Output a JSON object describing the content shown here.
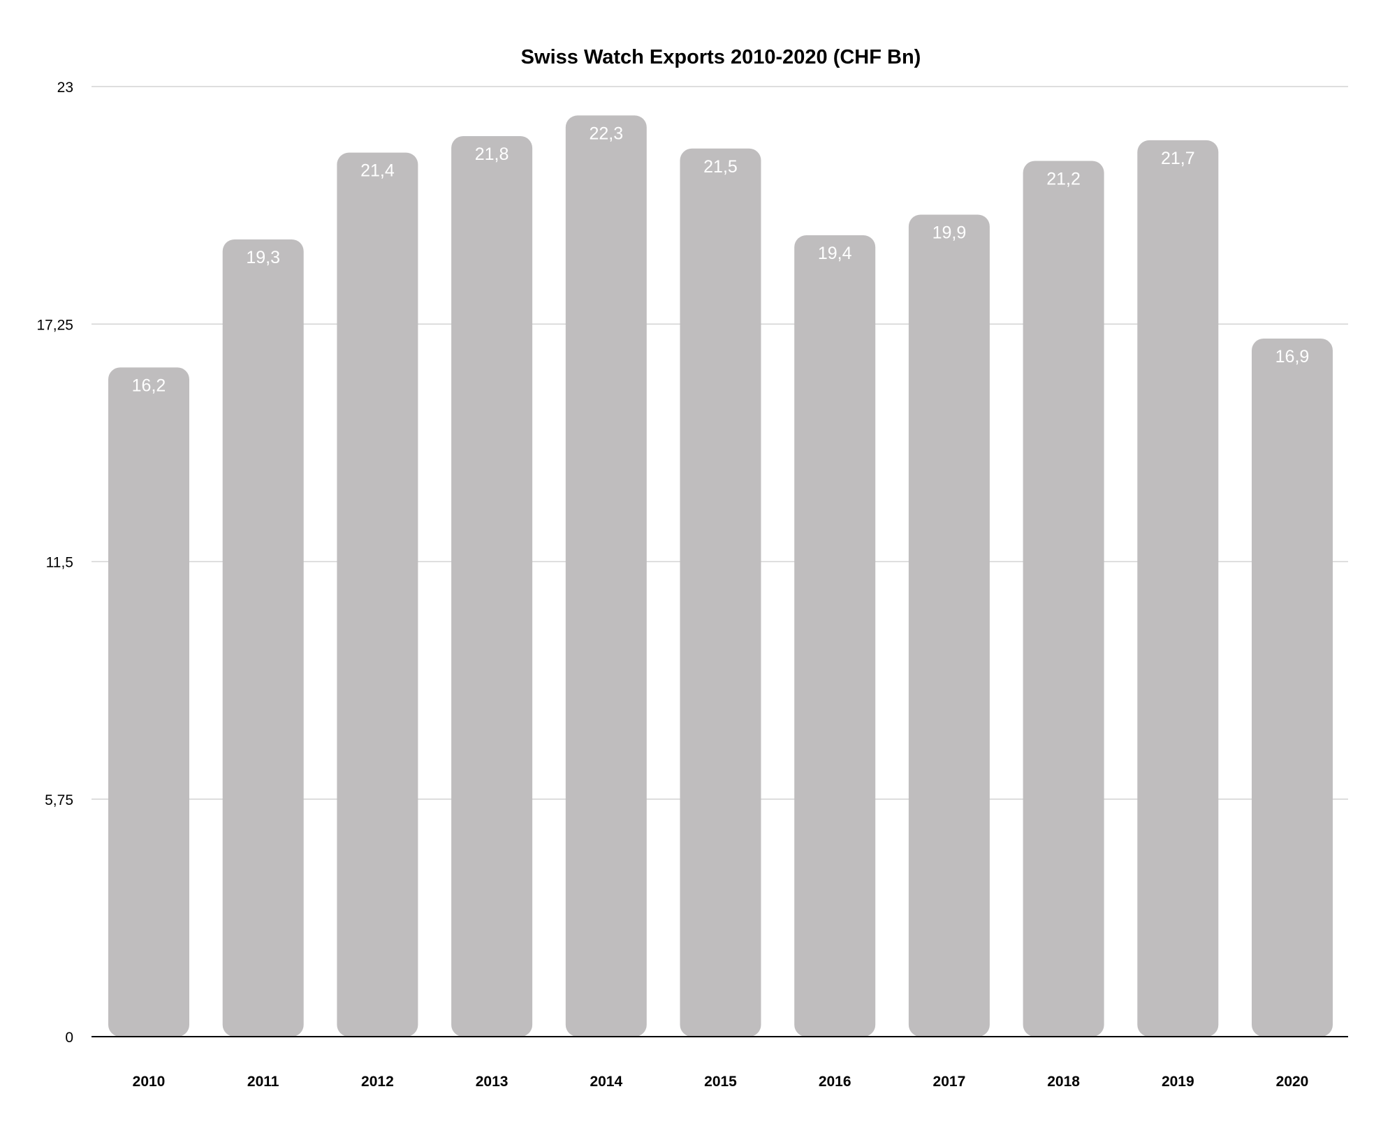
{
  "chart_data": {
    "type": "bar",
    "title": "Swiss Watch Exports 2010-2020 (CHF Bn)",
    "xlabel": "",
    "ylabel": "",
    "categories": [
      "2010",
      "2011",
      "2012",
      "2013",
      "2014",
      "2015",
      "2016",
      "2017",
      "2018",
      "2019",
      "2020"
    ],
    "values": [
      16.2,
      19.3,
      21.4,
      21.8,
      22.3,
      21.5,
      19.4,
      19.9,
      21.2,
      21.7,
      16.9
    ],
    "value_labels": [
      "16,2",
      "19,3",
      "21,4",
      "21,8",
      "22,3",
      "21,5",
      "19,4",
      "19,9",
      "21,2",
      "21,7",
      "16,9"
    ],
    "ylim": [
      0,
      23
    ],
    "y_ticks": [
      0,
      5.75,
      11.5,
      17.25,
      23
    ],
    "y_tick_labels": [
      "0",
      "5,75",
      "11,5",
      "17,25",
      "23"
    ],
    "grid": true,
    "legend": "none",
    "colors": {
      "bar": "#bfbdbe",
      "gridline": "#d3d3d3",
      "baseline": "#000000",
      "data_label": "#ffffff",
      "text": "#000000"
    }
  }
}
